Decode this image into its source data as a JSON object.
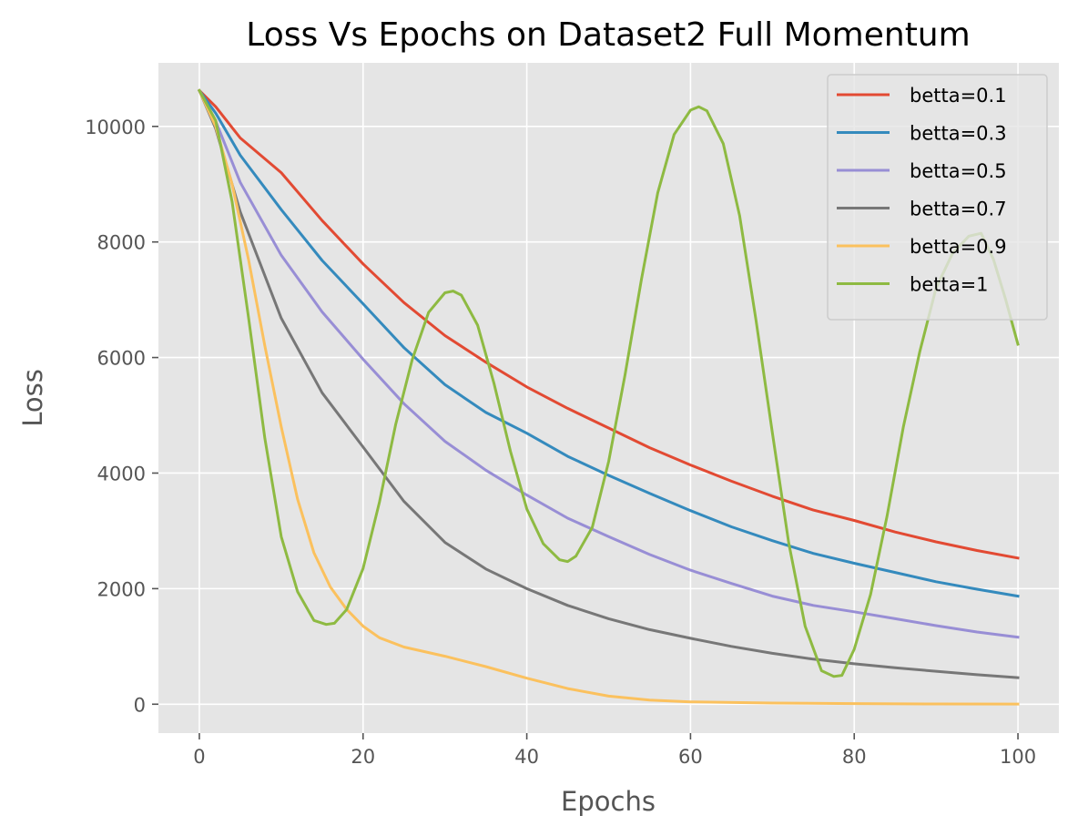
{
  "chart_data": {
    "type": "line",
    "title": "Loss Vs Epochs on Dataset2 Full Momentum",
    "xlabel": "Epochs",
    "ylabel": "Loss",
    "xlim": [
      -5,
      105
    ],
    "ylim": [
      -500,
      11100
    ],
    "xticks": [
      0,
      20,
      40,
      60,
      80,
      100
    ],
    "yticks": [
      0,
      2000,
      4000,
      6000,
      8000,
      10000
    ],
    "grid": true,
    "legend_position": "top-right",
    "series": [
      {
        "name": "betta=0.1",
        "color": "#E24A33",
        "x": [
          0,
          2,
          5,
          10,
          15,
          20,
          25,
          30,
          35,
          40,
          45,
          50,
          55,
          60,
          65,
          70,
          75,
          80,
          85,
          90,
          95,
          100
        ],
        "y": [
          10620,
          10340,
          9800,
          9200,
          8370,
          7620,
          6950,
          6380,
          5920,
          5490,
          5120,
          4780,
          4440,
          4140,
          3860,
          3600,
          3360,
          3180,
          2980,
          2810,
          2660,
          2530
        ]
      },
      {
        "name": "betta=0.3",
        "color": "#348ABD",
        "x": [
          0,
          2,
          5,
          10,
          15,
          20,
          25,
          30,
          35,
          40,
          45,
          50,
          55,
          60,
          65,
          70,
          75,
          80,
          85,
          90,
          95,
          100
        ],
        "y": [
          10620,
          10230,
          9500,
          8560,
          7680,
          6930,
          6170,
          5530,
          5050,
          4690,
          4290,
          3960,
          3650,
          3350,
          3070,
          2830,
          2610,
          2440,
          2280,
          2120,
          1990,
          1870
        ]
      },
      {
        "name": "betta=0.5",
        "color": "#988ED5",
        "x": [
          0,
          2,
          5,
          10,
          15,
          20,
          25,
          30,
          35,
          40,
          45,
          50,
          55,
          60,
          65,
          70,
          75,
          80,
          85,
          90,
          95,
          100
        ],
        "y": [
          10620,
          10090,
          9030,
          7770,
          6790,
          5970,
          5200,
          4550,
          4050,
          3620,
          3220,
          2900,
          2590,
          2320,
          2090,
          1870,
          1710,
          1600,
          1480,
          1360,
          1250,
          1160
        ]
      },
      {
        "name": "betta=0.7",
        "color": "#777777",
        "x": [
          0,
          2,
          5,
          10,
          15,
          20,
          25,
          30,
          35,
          40,
          45,
          50,
          55,
          60,
          65,
          70,
          75,
          80,
          85,
          90,
          95,
          100
        ],
        "y": [
          10620,
          9960,
          8520,
          6680,
          5390,
          4450,
          3510,
          2800,
          2340,
          2000,
          1710,
          1480,
          1290,
          1140,
          1000,
          880,
          780,
          700,
          630,
          570,
          510,
          460
        ]
      },
      {
        "name": "betta=0.9",
        "color": "#FBC15E",
        "x": [
          0,
          2,
          4,
          6,
          8,
          10,
          12,
          14,
          16,
          18,
          20,
          22,
          25,
          30,
          35,
          40,
          45,
          50,
          55,
          60,
          70,
          80,
          90,
          100
        ],
        "y": [
          10620,
          10000,
          9000,
          7700,
          6200,
          4800,
          3550,
          2620,
          2030,
          1640,
          1350,
          1150,
          990,
          830,
          650,
          450,
          270,
          140,
          70,
          40,
          20,
          10,
          5,
          3
        ]
      },
      {
        "name": "betta=1",
        "color": "#8EBA42",
        "x": [
          0,
          2,
          4,
          6,
          8,
          10,
          12,
          14,
          15.5,
          16.5,
          18,
          20,
          22,
          24,
          26,
          28,
          30,
          31,
          32,
          34,
          36,
          38,
          40,
          42,
          44,
          45,
          46,
          48,
          50,
          52,
          54,
          56,
          58,
          60,
          61,
          62,
          64,
          66,
          68,
          70,
          72,
          74,
          76,
          77.5,
          78.5,
          80,
          82,
          84,
          86,
          88,
          90,
          92,
          94,
          95.5,
          97,
          98.5,
          100
        ],
        "y": [
          10620,
          10100,
          8700,
          6700,
          4600,
          2900,
          1950,
          1450,
          1380,
          1400,
          1640,
          2350,
          3500,
          4850,
          5960,
          6780,
          7120,
          7150,
          7080,
          6560,
          5550,
          4380,
          3380,
          2780,
          2500,
          2470,
          2560,
          3060,
          4200,
          5700,
          7350,
          8850,
          9860,
          10280,
          10340,
          10270,
          9700,
          8450,
          6650,
          4700,
          2790,
          1350,
          580,
          480,
          500,
          950,
          1900,
          3250,
          4800,
          6100,
          7200,
          7800,
          8100,
          8150,
          7700,
          7000,
          6230
        ]
      }
    ]
  }
}
